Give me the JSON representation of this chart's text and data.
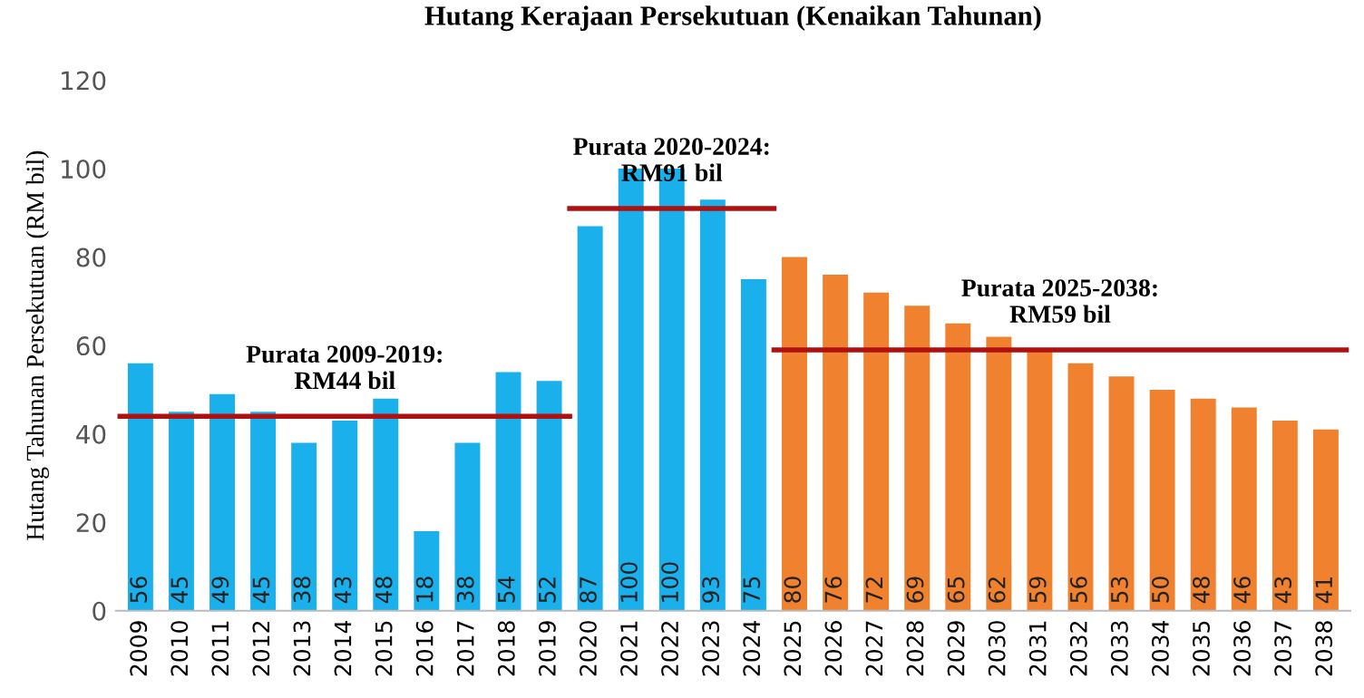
{
  "chart_data": {
    "type": "bar",
    "title": "Hutang Kerajaan Persekutuan (Kenaikan Tahunan)",
    "ylabel": "Hutang Tahunan Persekutuan (RM bil)",
    "categories": [
      "2009",
      "2010",
      "2011",
      "2012",
      "2013",
      "2014",
      "2015",
      "2016",
      "2017",
      "2018",
      "2019",
      "2020",
      "2021",
      "2022",
      "2023",
      "2024",
      "2025",
      "2026",
      "2027",
      "2028",
      "2029",
      "2030",
      "2031",
      "2032",
      "2033",
      "2034",
      "2035",
      "2036",
      "2037",
      "2038"
    ],
    "series": [
      {
        "color": "#1ab0ec",
        "values": [
          56,
          45,
          49,
          45,
          38,
          43,
          48,
          18,
          38,
          54,
          52,
          null,
          null,
          null,
          null,
          null,
          null,
          null,
          null,
          null,
          null,
          null,
          null,
          null,
          null,
          null,
          null,
          null,
          null,
          null
        ]
      },
      {
        "color": "#1ab0ec",
        "values": [
          null,
          null,
          null,
          null,
          null,
          null,
          null,
          null,
          null,
          null,
          null,
          87,
          100,
          100,
          93,
          75,
          null,
          null,
          null,
          null,
          null,
          null,
          null,
          null,
          null,
          null,
          null,
          null,
          null,
          null
        ]
      },
      {
        "color": "#f0822f",
        "values": [
          null,
          null,
          null,
          null,
          null,
          null,
          null,
          null,
          null,
          null,
          null,
          null,
          null,
          null,
          null,
          null,
          80,
          76,
          72,
          69,
          65,
          62,
          59,
          56,
          53,
          50,
          48,
          46,
          43,
          41
        ]
      }
    ],
    "ref_lines": [
      {
        "axis": "y",
        "value": 44,
        "label": "Purata 2009-2019:\nRM44 bil",
        "color": "#b01010"
      },
      {
        "axis": "y",
        "value": 91,
        "label": "Purata 2020-2024:\nRM91 bil",
        "color": "#b01010"
      },
      {
        "axis": "y",
        "value": 59,
        "label": "Purata 2025-2038:\nRM59 bil",
        "color": "#b01010"
      }
    ],
    "data_labels": true,
    "ylim": [
      0,
      120
    ],
    "yticks": [
      0,
      20,
      40,
      60,
      80,
      100,
      120
    ],
    "grid": false,
    "legend": false
  }
}
